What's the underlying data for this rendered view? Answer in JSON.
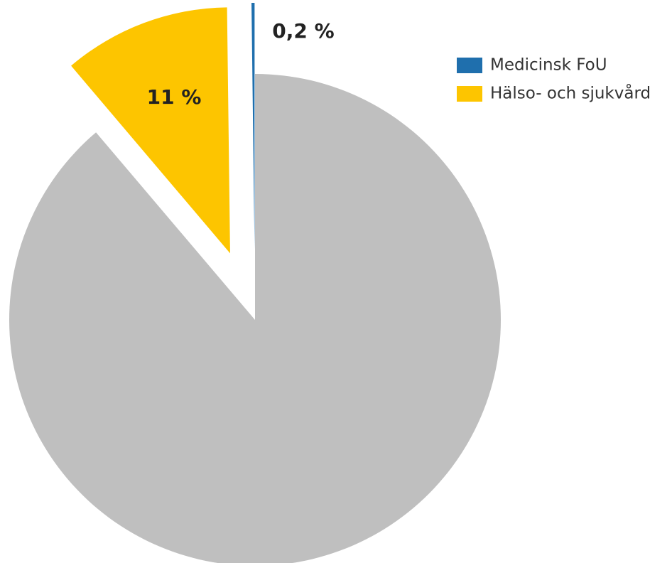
{
  "chart_data": {
    "type": "pie",
    "categories": [
      "Medicinsk FoU",
      "Hälso- och sjukvård",
      null
    ],
    "values": [
      0.2,
      11,
      88.8
    ],
    "value_labels": [
      "0,2 %",
      "11 %",
      null
    ],
    "colors": [
      "#1f6fad",
      "#fdc500",
      "#bfbfbf"
    ],
    "legend": "upper right"
  }
}
